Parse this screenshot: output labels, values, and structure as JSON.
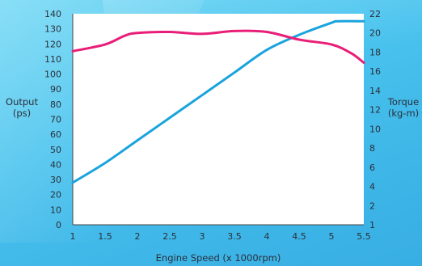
{
  "chart_data": {
    "type": "line",
    "xlabel": "Engine Speed (x 1000rpm)",
    "ylabel_left": [
      "Output",
      "(ps)"
    ],
    "ylabel_right": [
      "Torque",
      "(kg-m)"
    ],
    "xlim": [
      1,
      5.5
    ],
    "ylim_left": [
      0,
      140
    ],
    "x_ticks": [
      "1",
      "1.5",
      "2",
      "2.5",
      "3",
      "3.5",
      "4",
      "4.5",
      "5",
      "5.5"
    ],
    "y_left_ticks": [
      "0",
      "10",
      "20",
      "30",
      "40",
      "50",
      "60",
      "70",
      "80",
      "90",
      "100",
      "110",
      "120",
      "130",
      "140"
    ],
    "y_right_ticks": [
      "1",
      "2",
      "4",
      "6",
      "8",
      "10",
      "12",
      "14",
      "16",
      "18",
      "20",
      "22"
    ],
    "series": [
      {
        "axis": "left",
        "color": "#1aa3dc",
        "x": [
          1.0,
          1.5,
          2.0,
          2.5,
          3.0,
          3.5,
          4.0,
          4.5,
          5.0,
          5.1,
          5.5
        ],
        "y": [
          28,
          41,
          56,
          71,
          86,
          101,
          116,
          126,
          134,
          135,
          135
        ]
      },
      {
        "axis": "right",
        "color": "#e91e78",
        "x": [
          1.0,
          1.5,
          1.8,
          2.0,
          2.5,
          3.0,
          3.5,
          4.0,
          4.5,
          5.0,
          5.3,
          5.5
        ],
        "y": [
          18.1,
          18.8,
          19.7,
          20.0,
          20.1,
          19.9,
          20.2,
          20.1,
          19.3,
          18.8,
          17.9,
          16.9
        ]
      }
    ]
  }
}
